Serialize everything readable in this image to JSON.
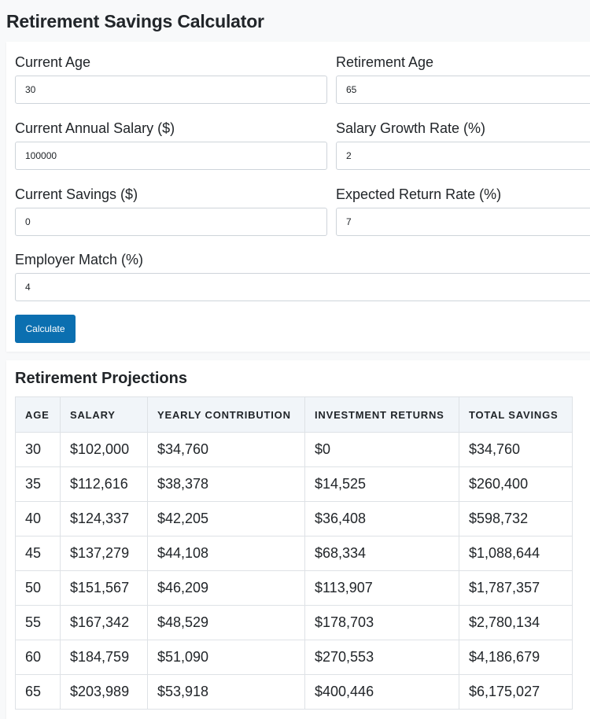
{
  "page": {
    "title": "Retirement Savings Calculator"
  },
  "form": {
    "current_age": {
      "label": "Current Age",
      "value": "30"
    },
    "retirement_age": {
      "label": "Retirement Age",
      "value": "65"
    },
    "current_salary": {
      "label": "Current Annual Salary ($)",
      "value": "100000"
    },
    "salary_growth": {
      "label": "Salary Growth Rate (%)",
      "value": "2"
    },
    "current_savings": {
      "label": "Current Savings ($)",
      "value": "0"
    },
    "return_rate": {
      "label": "Expected Return Rate (%)",
      "value": "7"
    },
    "employer_match": {
      "label": "Employer Match (%)",
      "value": "4"
    },
    "calculate_label": "Calculate",
    "button_color": "#0b6fb0"
  },
  "results": {
    "title": "Retirement Projections",
    "columns": [
      "AGE",
      "SALARY",
      "YEARLY CONTRIBUTION",
      "INVESTMENT RETURNS",
      "TOTAL SAVINGS"
    ],
    "rows": [
      [
        "30",
        "$102,000",
        "$34,760",
        "$0",
        "$34,760"
      ],
      [
        "35",
        "$112,616",
        "$38,378",
        "$14,525",
        "$260,400"
      ],
      [
        "40",
        "$124,337",
        "$42,205",
        "$36,408",
        "$598,732"
      ],
      [
        "45",
        "$137,279",
        "$44,108",
        "$68,334",
        "$1,088,644"
      ],
      [
        "50",
        "$151,567",
        "$46,209",
        "$113,907",
        "$1,787,357"
      ],
      [
        "55",
        "$167,342",
        "$48,529",
        "$178,703",
        "$2,780,134"
      ],
      [
        "60",
        "$184,759",
        "$51,090",
        "$270,553",
        "$4,186,679"
      ],
      [
        "65",
        "$203,989",
        "$53,918",
        "$400,446",
        "$6,175,027"
      ]
    ]
  }
}
